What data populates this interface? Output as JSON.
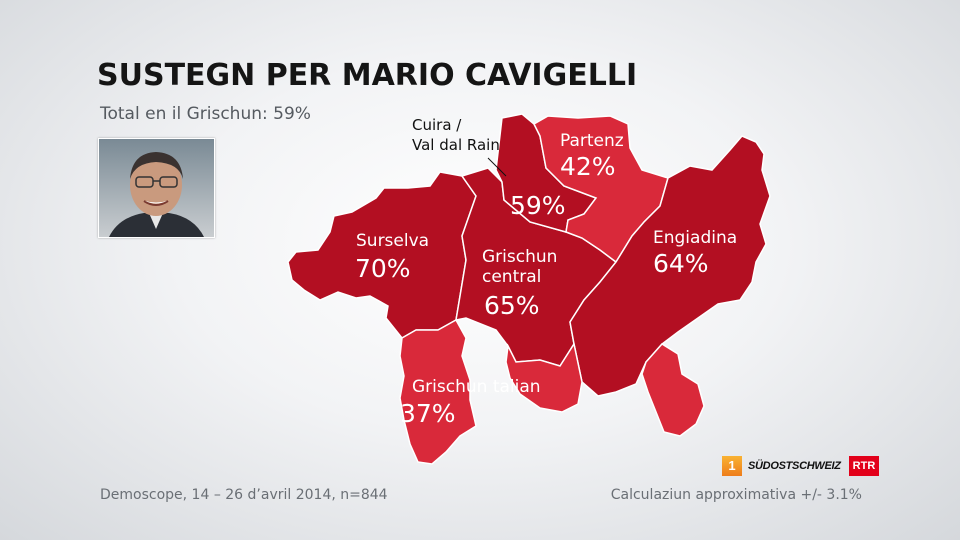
{
  "title": "SUSTEGN PER MARIO CAVIGELLI",
  "subtitle": "Total en il Grischun: 59%",
  "photo": {
    "icon": "person-portrait-icon"
  },
  "colors": {
    "dark_region": "#b30f22",
    "light_region": "#d9293a",
    "border": "#ffffff"
  },
  "regions": [
    {
      "id": "surselva",
      "name": "Surselva",
      "value": "70%"
    },
    {
      "id": "grischun-central",
      "name_line1": "Grischun",
      "name_line2": "central",
      "value": "65%"
    },
    {
      "id": "cuira",
      "name_line1": "Cuira /",
      "name_line2": "Val dal Rain",
      "value": "59%"
    },
    {
      "id": "partenz",
      "name": "Partenz",
      "value": "42%"
    },
    {
      "id": "engiadina",
      "name": "Engiadina",
      "value": "64%"
    },
    {
      "id": "grischun-talian",
      "name": "Grischun talian",
      "value": "37%"
    }
  ],
  "footer": {
    "source": "Demoscope, 14 – 26 d’avril 2014, n=844",
    "margin": "Calculaziun approximativa +/- 3.1%"
  },
  "logos": {
    "tv": "1",
    "newspaper": "SÜDOSTSCHWEIZ",
    "broadcaster": "RTR"
  }
}
